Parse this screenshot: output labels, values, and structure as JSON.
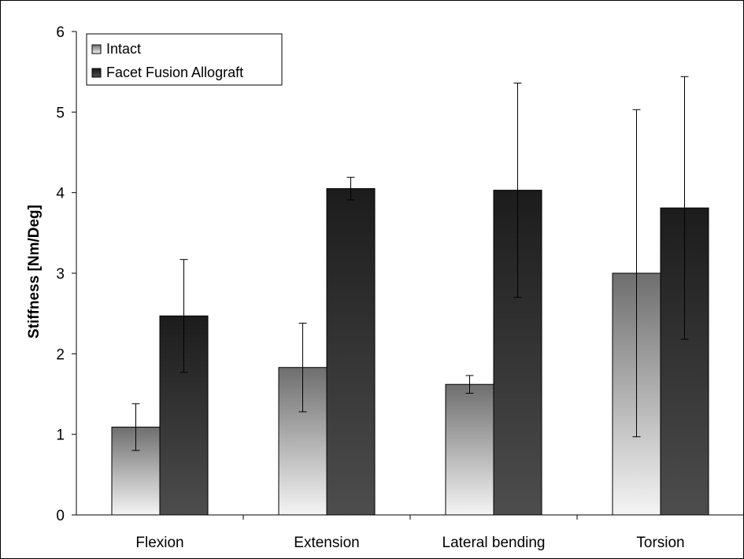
{
  "chart_data": {
    "type": "bar",
    "title": "",
    "xlabel": "",
    "ylabel": "Stiffness [Nm/Deg]",
    "ylim": [
      0,
      6
    ],
    "yticks": [
      0,
      1,
      2,
      3,
      4,
      5,
      6
    ],
    "grid": false,
    "legend_position": "top-left",
    "categories": [
      "Flexion",
      "Extension",
      "Lateral bending",
      "Torsion"
    ],
    "series": [
      {
        "name": "Intact",
        "values": [
          1.09,
          1.83,
          1.62,
          3.0
        ],
        "error": [
          0.29,
          0.55,
          0.11,
          2.03
        ],
        "fill": "gradient",
        "colors": [
          "#6e6e6e",
          "#f4f4f4"
        ]
      },
      {
        "name": "Facet Fusion Allograft",
        "values": [
          2.47,
          4.05,
          4.03,
          3.81
        ],
        "error": [
          0.7,
          0.14,
          1.33,
          1.63
        ],
        "fill": "gradient",
        "colors": [
          "#1c1c1c",
          "#4d4d4d"
        ]
      }
    ]
  }
}
